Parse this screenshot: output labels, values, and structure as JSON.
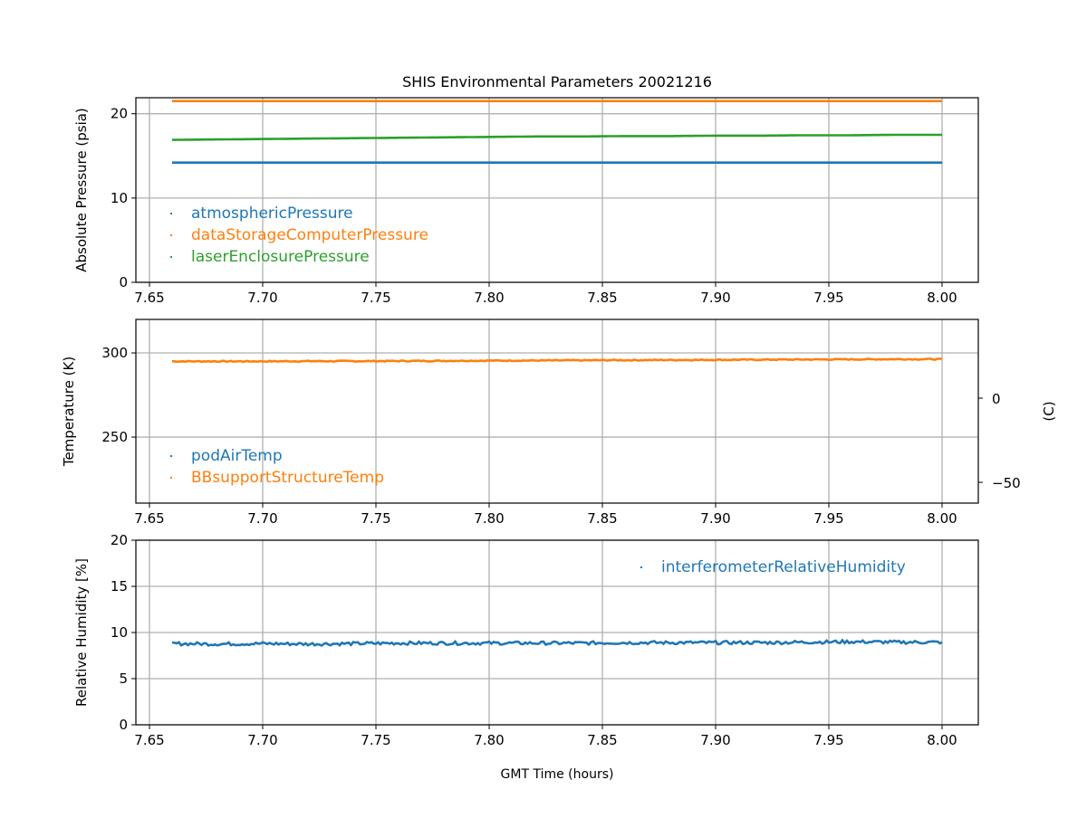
{
  "chart_data": {
    "type": "line",
    "title": "SHIS Environmental Parameters 20021216",
    "xlabel": "GMT Time (hours)",
    "xlim": [
      7.644,
      8.016
    ],
    "xticks": [
      7.65,
      7.7,
      7.75,
      7.8,
      7.85,
      7.9,
      7.95,
      8.0
    ],
    "xtick_labels": [
      "7.65",
      "7.70",
      "7.75",
      "7.80",
      "7.85",
      "7.90",
      "7.95",
      "8.00"
    ],
    "x": [
      7.66,
      7.68,
      7.7,
      7.72,
      7.74,
      7.76,
      7.78,
      7.8,
      7.82,
      7.84,
      7.86,
      7.88,
      7.9,
      7.92,
      7.94,
      7.96,
      7.98,
      8.0
    ],
    "panels": [
      {
        "ylabel": "Absolute Pressure (psia)",
        "ylim": [
          0,
          21.9
        ],
        "yticks": [
          0,
          10,
          20
        ],
        "ytick_labels": [
          "0",
          "10",
          "20"
        ],
        "grid": true,
        "legend": "lower-left",
        "series": [
          {
            "name": "atmosphericPressure",
            "color": "#1f77b4",
            "values": [
              14.2,
              14.2,
              14.2,
              14.2,
              14.2,
              14.2,
              14.2,
              14.2,
              14.2,
              14.2,
              14.2,
              14.2,
              14.2,
              14.2,
              14.2,
              14.2,
              14.2,
              14.2
            ]
          },
          {
            "name": "dataStorageComputerPressure",
            "color": "#ff7f0e",
            "values": [
              21.5,
              21.5,
              21.5,
              21.5,
              21.5,
              21.5,
              21.5,
              21.5,
              21.5,
              21.5,
              21.5,
              21.5,
              21.5,
              21.5,
              21.5,
              21.5,
              21.5,
              21.5
            ]
          },
          {
            "name": "laserEnclosurePressure",
            "color": "#2ca02c",
            "values": [
              16.9,
              16.95,
              17.0,
              17.05,
              17.1,
              17.15,
              17.2,
              17.25,
              17.3,
              17.3,
              17.35,
              17.35,
              17.4,
              17.4,
              17.45,
              17.45,
              17.5,
              17.5
            ]
          }
        ]
      },
      {
        "ylabel": "Temperature (K)",
        "ylim": [
          210.8,
          319.9
        ],
        "yticks": [
          250,
          300
        ],
        "ytick_labels": [
          "250",
          "300"
        ],
        "y2label": "(C)",
        "y2ticks": [
          0,
          -50
        ],
        "y2tick_labels": [
          "0",
          "−50"
        ],
        "grid": true,
        "legend": "lower-left",
        "series": [
          {
            "name": "podAirTemp",
            "color": "#1f77b4",
            "values": []
          },
          {
            "name": "BBsupportStructureTemp",
            "color": "#ff7f0e",
            "values": [
              295.0,
              295.0,
              295.0,
              295.1,
              295.1,
              295.2,
              295.3,
              295.4,
              295.5,
              295.6,
              295.7,
              295.8,
              295.9,
              296.0,
              296.1,
              296.2,
              296.3,
              296.3
            ]
          }
        ]
      },
      {
        "ylabel": "Relative Humidity [%]",
        "ylim": [
          0,
          20
        ],
        "yticks": [
          0,
          5,
          10,
          15,
          20
        ],
        "ytick_labels": [
          "0",
          "5",
          "10",
          "15",
          "20"
        ],
        "grid": true,
        "legend": "upper-right",
        "series": [
          {
            "name": "interferometerRelativeHumidity",
            "color": "#1f77b4",
            "values": [
              8.8,
              8.75,
              8.8,
              8.75,
              8.8,
              8.85,
              8.85,
              8.85,
              8.85,
              8.85,
              8.9,
              8.9,
              8.9,
              8.9,
              8.95,
              9.0,
              8.95,
              8.95
            ]
          }
        ]
      }
    ]
  }
}
